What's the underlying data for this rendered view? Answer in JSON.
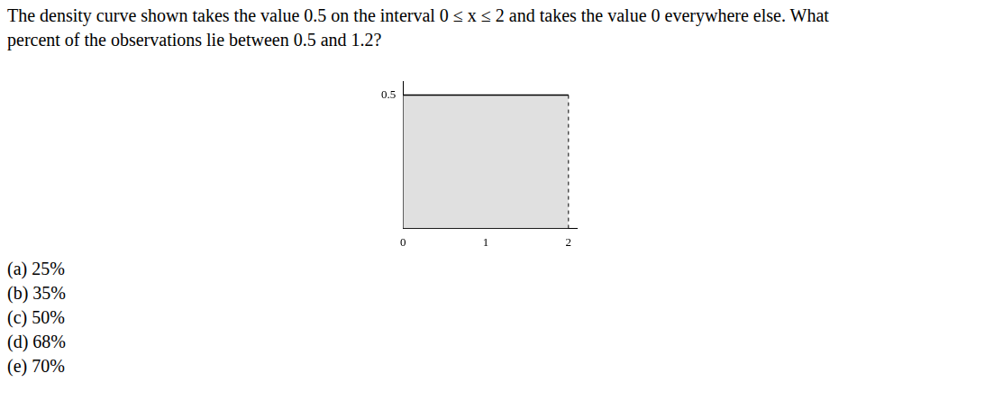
{
  "question": {
    "lines": [
      "The density curve shown takes the value 0.5 on the interval 0 ≤ x ≤ 2 and takes the value 0 everywhere else.  What",
      "percent of the observations lie between 0.5 and 1.2?"
    ]
  },
  "chart_data": {
    "type": "area",
    "x": [
      0,
      2
    ],
    "values": [
      0.5,
      0.5
    ],
    "color": "#e0e0e0",
    "xlim": [
      0,
      2.1
    ],
    "ylim": [
      0,
      0.55
    ],
    "xticks": [
      0,
      1,
      2
    ],
    "yticks": [
      0.5
    ],
    "grid": false
  },
  "choices": [
    "(a)  25%",
    "(b)  35%",
    "(c)  50%",
    "(d)  68%",
    "(e)  70%"
  ]
}
